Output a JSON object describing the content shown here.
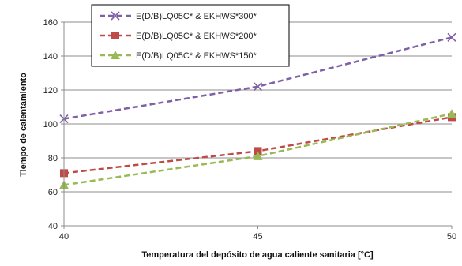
{
  "chart_data": {
    "type": "line",
    "title": "",
    "xlabel": "Temperatura del depósito de agua caliente sanitaria [°C]",
    "ylabel": "Tiempo de calentamiento",
    "x": [
      40,
      45,
      50
    ],
    "xlim": [
      40,
      50
    ],
    "xticks": [
      "40",
      "45",
      "50"
    ],
    "ylim": [
      40,
      160
    ],
    "yticks": [
      "40",
      "60",
      "80",
      "100",
      "120",
      "140",
      "160"
    ],
    "grid": "horizontal",
    "legend_position": "top-center",
    "series": [
      {
        "name": "E(D/B)LQ05C* & EKHWS*300*",
        "values": [
          103,
          122,
          151
        ],
        "color": "#7e5fa8",
        "marker": "x-icon",
        "line_style": "dashed"
      },
      {
        "name": "E(D/B)LQ05C* & EKHWS*200*",
        "values": [
          71,
          84,
          104
        ],
        "color": "#be4b48",
        "marker": "square-icon",
        "line_style": "dashed"
      },
      {
        "name": "E(D/B)LQ05C* & EKHWS*150*",
        "values": [
          64,
          81,
          106
        ],
        "color": "#98b954",
        "marker": "triangle-icon",
        "line_style": "dashed"
      }
    ]
  }
}
